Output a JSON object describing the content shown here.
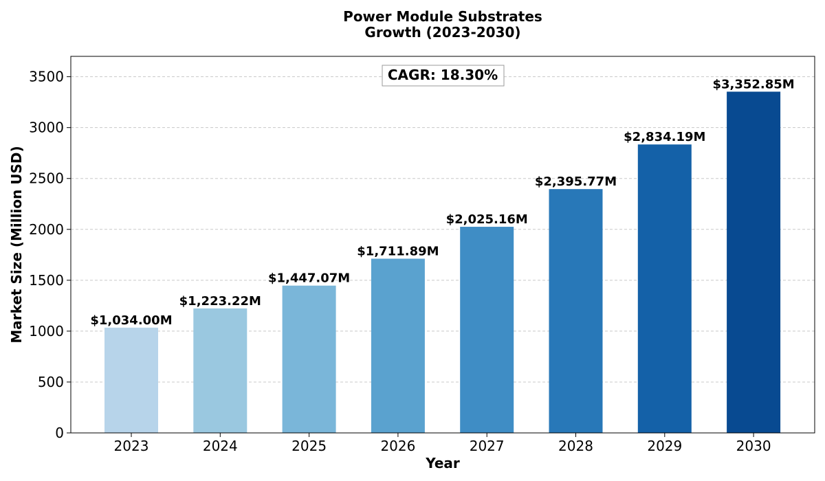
{
  "chart_data": {
    "type": "bar",
    "title_lines": [
      "Power Module Substrates",
      "Growth (2023-2030)"
    ],
    "xlabel": "Year",
    "ylabel": "Market Size (Million USD)",
    "categories": [
      "2023",
      "2024",
      "2025",
      "2026",
      "2027",
      "2028",
      "2029",
      "2030"
    ],
    "values": [
      1034.0,
      1223.22,
      1447.07,
      1711.89,
      2025.16,
      2395.77,
      2834.19,
      3352.85
    ],
    "value_labels": [
      "$1,034.00M",
      "$1,223.22M",
      "$1,447.07M",
      "$1,711.89M",
      "$2,025.16M",
      "$2,395.77M",
      "$2,834.19M",
      "$3,352.85M"
    ],
    "bar_colors": [
      "#b7d4ea",
      "#9ac8e0",
      "#7ab6d9",
      "#5aa2cf",
      "#3f8dc5",
      "#2878b8",
      "#1461a8",
      "#084a91"
    ],
    "yticks": [
      0,
      500,
      1000,
      1500,
      2000,
      2500,
      3000,
      3500
    ],
    "ylim": [
      0,
      3700
    ],
    "grid": "y-dashed",
    "annotation": "CAGR: 18.30%"
  }
}
